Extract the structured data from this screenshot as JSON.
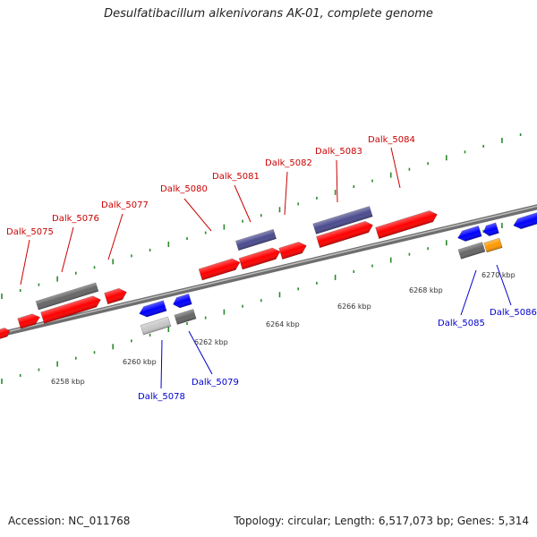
{
  "title": "Desulfatibacillum alkenivorans AK-01, complete genome",
  "footer": {
    "accession": "Accession: NC_011768",
    "stats": "Topology: circular; Length: 6,517,073 bp; Genes: 5,314"
  },
  "colors": {
    "forward_cds": "#ff0000",
    "forward_label": "#cc0000",
    "reverse_cds": "#0000ff",
    "reverse_label": "#0000cc",
    "hypothetical": "#4b4b8f",
    "gray": "#666666",
    "light_gray": "#c8c8c8",
    "orange": "#ff9900",
    "tick_green": "#2a8a2a",
    "backbone": "#808080"
  },
  "scale_labels": [
    "6258 kbp",
    "6260 kbp",
    "6262 kbp",
    "6264 kbp",
    "6266 kbp",
    "6268 kbp",
    "6270 kbp"
  ],
  "gene_labels": [
    {
      "id": "dalk-5075",
      "text": "Dalk_5075",
      "strand": "forward"
    },
    {
      "id": "dalk-5076",
      "text": "Dalk_5076",
      "strand": "forward"
    },
    {
      "id": "dalk-5077",
      "text": "Dalk_5077",
      "strand": "forward"
    },
    {
      "id": "dalk-5078",
      "text": "Dalk_5078",
      "strand": "reverse"
    },
    {
      "id": "dalk-5079",
      "text": "Dalk_5079",
      "strand": "reverse"
    },
    {
      "id": "dalk-5080",
      "text": "Dalk_5080",
      "strand": "forward"
    },
    {
      "id": "dalk-5081",
      "text": "Dalk_5081",
      "strand": "forward"
    },
    {
      "id": "dalk-5082",
      "text": "Dalk_5082",
      "strand": "forward"
    },
    {
      "id": "dalk-5083",
      "text": "Dalk_5083",
      "strand": "forward"
    },
    {
      "id": "dalk-5084",
      "text": "Dalk_5084",
      "strand": "forward"
    },
    {
      "id": "dalk-5085",
      "text": "Dalk_5085",
      "strand": "reverse"
    },
    {
      "id": "dalk-5086",
      "text": "Dalk_5086",
      "strand": "reverse"
    }
  ]
}
